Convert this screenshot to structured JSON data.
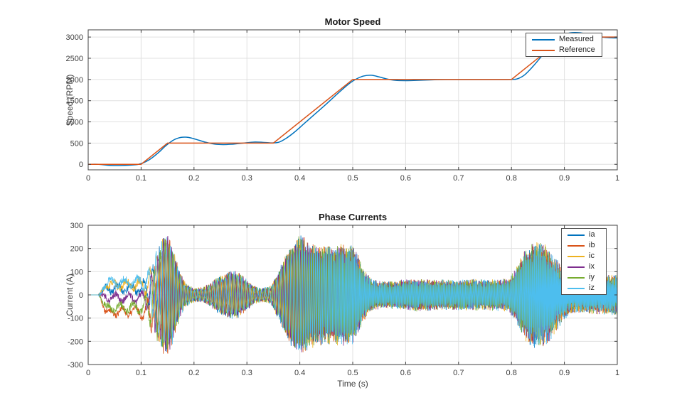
{
  "theme": {
    "background": "#ffffff",
    "axis_color": "#404040",
    "grid_color": "#e0e0e0",
    "tick_label_color": "#3d3d3d",
    "title_color": "#1a1a1a"
  },
  "chart_data": [
    {
      "type": "line",
      "title": "Motor Speed",
      "xlabel": "",
      "ylabel": "Speed (RPM)",
      "xlim": [
        0,
        1
      ],
      "ylim": [
        -130,
        3170
      ],
      "grid": true,
      "xticks": [
        0,
        0.1,
        0.2,
        0.3,
        0.4,
        0.5,
        0.6,
        0.7,
        0.8,
        0.9,
        1
      ],
      "xtick_labels": [
        "0",
        "0.1",
        "0.2",
        "0.3",
        "0.4",
        "0.5",
        "0.6",
        "0.7",
        "0.8",
        "0.9",
        "1"
      ],
      "yticks": [
        0,
        500,
        1000,
        1500,
        2000,
        2500,
        3000
      ],
      "ytick_labels": [
        "0",
        "500",
        "1000",
        "1500",
        "2000",
        "2500",
        "3000"
      ],
      "legend_position": "northeast",
      "series": [
        {
          "name": "Measured",
          "color": "#0072BD",
          "smooth": true,
          "line_width": 1.5,
          "points": [
            [
              0,
              0
            ],
            [
              0.02,
              0
            ],
            [
              0.04,
              -25
            ],
            [
              0.06,
              -30
            ],
            [
              0.08,
              -20
            ],
            [
              0.095,
              0
            ],
            [
              0.105,
              40
            ],
            [
              0.115,
              105
            ],
            [
              0.125,
              195
            ],
            [
              0.135,
              300
            ],
            [
              0.145,
              420
            ],
            [
              0.155,
              520
            ],
            [
              0.165,
              595
            ],
            [
              0.175,
              635
            ],
            [
              0.185,
              640
            ],
            [
              0.195,
              620
            ],
            [
              0.21,
              565
            ],
            [
              0.225,
              510
            ],
            [
              0.24,
              475
            ],
            [
              0.255,
              465
            ],
            [
              0.27,
              472
            ],
            [
              0.285,
              490
            ],
            [
              0.3,
              508
            ],
            [
              0.315,
              525
            ],
            [
              0.33,
              518
            ],
            [
              0.345,
              505
            ],
            [
              0.36,
              520
            ],
            [
              0.375,
              620
            ],
            [
              0.39,
              760
            ],
            [
              0.41,
              980
            ],
            [
              0.43,
              1200
            ],
            [
              0.45,
              1420
            ],
            [
              0.47,
              1650
            ],
            [
              0.49,
              1870
            ],
            [
              0.505,
              2000
            ],
            [
              0.52,
              2080
            ],
            [
              0.535,
              2100
            ],
            [
              0.55,
              2060
            ],
            [
              0.565,
              2010
            ],
            [
              0.58,
              1980
            ],
            [
              0.6,
              1972
            ],
            [
              0.62,
              1978
            ],
            [
              0.65,
              1992
            ],
            [
              0.68,
              2000
            ],
            [
              0.72,
              2000
            ],
            [
              0.76,
              2000
            ],
            [
              0.8,
              2002
            ],
            [
              0.812,
              2020
            ],
            [
              0.825,
              2110
            ],
            [
              0.84,
              2300
            ],
            [
              0.855,
              2520
            ],
            [
              0.87,
              2760
            ],
            [
              0.885,
              2950
            ],
            [
              0.9,
              3060
            ],
            [
              0.915,
              3105
            ],
            [
              0.93,
              3100
            ],
            [
              0.945,
              3060
            ],
            [
              0.96,
              3020
            ],
            [
              0.975,
              2995
            ],
            [
              0.99,
              2982
            ],
            [
              1,
              2980
            ]
          ]
        },
        {
          "name": "Reference",
          "color": "#D95319",
          "smooth": false,
          "line_width": 1.5,
          "points": [
            [
              0,
              0
            ],
            [
              0.1,
              0
            ],
            [
              0.15,
              500
            ],
            [
              0.35,
              500
            ],
            [
              0.5,
              2000
            ],
            [
              0.8,
              2000
            ],
            [
              0.9,
              3000
            ],
            [
              1,
              3000
            ]
          ]
        }
      ]
    },
    {
      "type": "line",
      "title": "Phase Currents",
      "xlabel": "Time (s)",
      "ylabel": "Current (A)",
      "xlim": [
        0,
        1
      ],
      "ylim": [
        -300,
        300
      ],
      "grid": true,
      "xticks": [
        0,
        0.1,
        0.2,
        0.3,
        0.4,
        0.5,
        0.6,
        0.7,
        0.8,
        0.9,
        1
      ],
      "xtick_labels": [
        "0",
        "0.1",
        "0.2",
        "0.3",
        "0.4",
        "0.5",
        "0.6",
        "0.7",
        "0.8",
        "0.9",
        "1"
      ],
      "yticks": [
        -300,
        -200,
        -100,
        0,
        100,
        200,
        300
      ],
      "ytick_labels": [
        "-300",
        "-200",
        "-100",
        "0",
        "100",
        "200",
        "300"
      ],
      "legend_position": "northeast",
      "series": [
        {
          "name": "ia",
          "color": "#0072BD",
          "phase_deg": 0,
          "dc_offset": 28,
          "noise_seed": 11,
          "line_width": 0.8
        },
        {
          "name": "ib",
          "color": "#D95319",
          "phase_deg": 240,
          "dc_offset": -72,
          "noise_seed": 22,
          "line_width": 0.8
        },
        {
          "name": "ic",
          "color": "#EDB120",
          "phase_deg": 120,
          "dc_offset": 42,
          "noise_seed": 33,
          "line_width": 0.8
        },
        {
          "name": "ix",
          "color": "#7E2F8E",
          "phase_deg": 60,
          "dc_offset": -12,
          "noise_seed": 44,
          "line_width": 0.8
        },
        {
          "name": "iy",
          "color": "#77AC30",
          "phase_deg": 300,
          "dc_offset": -55,
          "noise_seed": 55,
          "line_width": 0.8
        },
        {
          "name": "iz",
          "color": "#4DBEEE",
          "phase_deg": 180,
          "dc_offset": 55,
          "noise_seed": 66,
          "line_width": 0.8
        }
      ],
      "waveform_model": {
        "sample_step": 0.0005,
        "start_time": 0.02,
        "amplitude_envelope": [
          [
            0,
            0
          ],
          [
            0.02,
            0
          ],
          [
            0.03,
            12
          ],
          [
            0.05,
            16
          ],
          [
            0.08,
            16
          ],
          [
            0.1,
            22
          ],
          [
            0.112,
            45
          ],
          [
            0.122,
            110
          ],
          [
            0.135,
            190
          ],
          [
            0.145,
            230
          ],
          [
            0.155,
            215
          ],
          [
            0.165,
            140
          ],
          [
            0.175,
            75
          ],
          [
            0.185,
            40
          ],
          [
            0.2,
            24
          ],
          [
            0.215,
            22
          ],
          [
            0.23,
            40
          ],
          [
            0.25,
            72
          ],
          [
            0.27,
            90
          ],
          [
            0.285,
            82
          ],
          [
            0.3,
            55
          ],
          [
            0.315,
            28
          ],
          [
            0.33,
            22
          ],
          [
            0.345,
            30
          ],
          [
            0.36,
            90
          ],
          [
            0.375,
            160
          ],
          [
            0.39,
            215
          ],
          [
            0.405,
            225
          ],
          [
            0.42,
            200
          ],
          [
            0.44,
            188
          ],
          [
            0.46,
            185
          ],
          [
            0.48,
            188
          ],
          [
            0.5,
            185
          ],
          [
            0.51,
            155
          ],
          [
            0.52,
            95
          ],
          [
            0.535,
            58
          ],
          [
            0.555,
            45
          ],
          [
            0.58,
            50
          ],
          [
            0.6,
            56
          ],
          [
            0.62,
            58
          ],
          [
            0.65,
            54
          ],
          [
            0.68,
            52
          ],
          [
            0.71,
            54
          ],
          [
            0.74,
            55
          ],
          [
            0.77,
            55
          ],
          [
            0.795,
            58
          ],
          [
            0.81,
            105
          ],
          [
            0.825,
            170
          ],
          [
            0.84,
            200
          ],
          [
            0.85,
            205
          ],
          [
            0.862,
            190
          ],
          [
            0.875,
            165
          ],
          [
            0.888,
            125
          ],
          [
            0.9,
            90
          ],
          [
            0.912,
            68
          ],
          [
            0.925,
            62
          ],
          [
            0.94,
            66
          ],
          [
            0.955,
            70
          ],
          [
            0.97,
            68
          ],
          [
            0.985,
            72
          ],
          [
            1,
            75
          ]
        ],
        "dc_window": [
          0.02,
          0.035,
          0.105,
          0.145
        ],
        "freq_hz_base": 40,
        "freq_hz_per_unit_speed": 560,
        "noise_base": 7,
        "noise_scale": 0.13,
        "noise_dc_extra": 6
      }
    }
  ]
}
